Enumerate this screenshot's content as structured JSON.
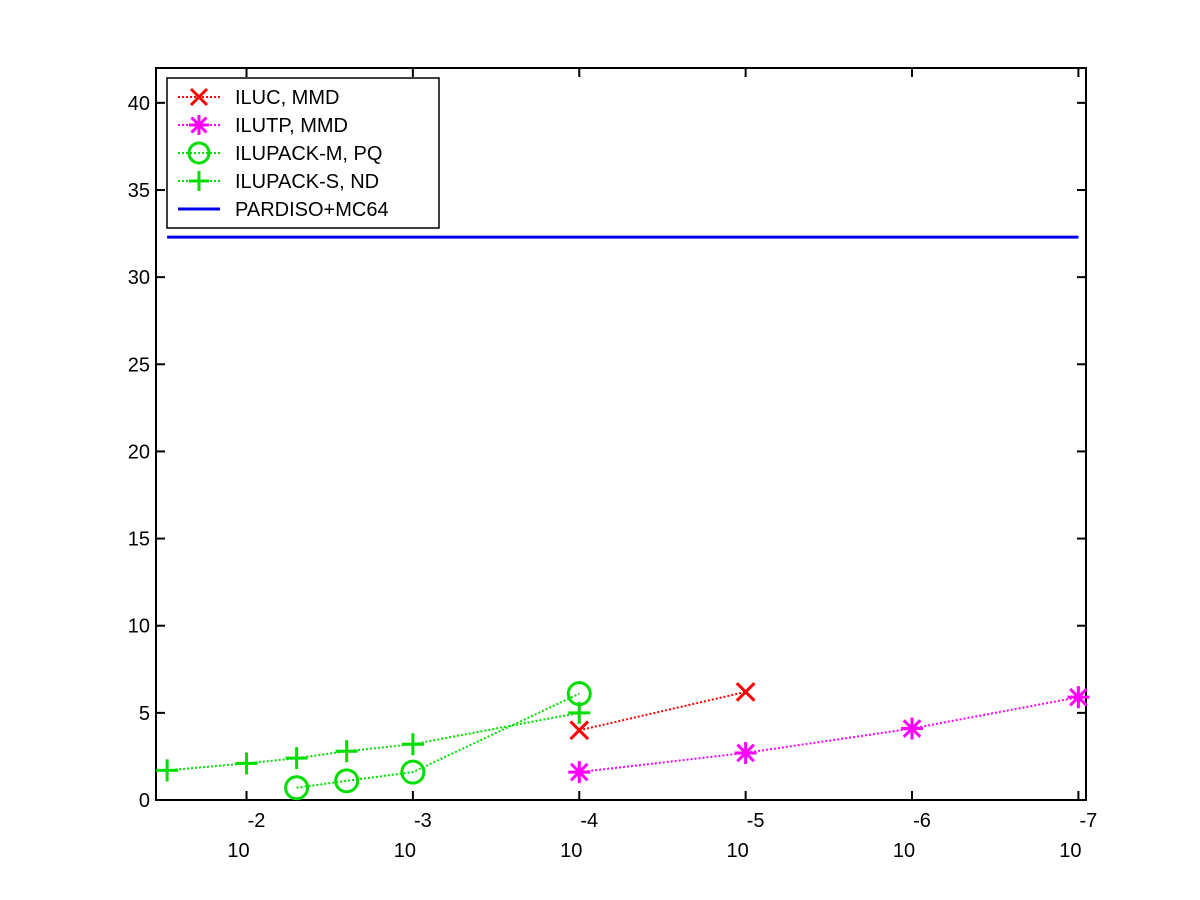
{
  "chart_data": {
    "type": "line",
    "title": "",
    "xlabel": "",
    "ylabel": "",
    "x_scale": "log",
    "x_direction": "descending",
    "xlim": [
      0.035,
      9e-08
    ],
    "ylim": [
      0,
      42
    ],
    "grid": false,
    "legend_position": "top-left",
    "x_ticks": [
      {
        "value": 0.01,
        "base": "10",
        "exp": "-2"
      },
      {
        "value": 0.001,
        "base": "10",
        "exp": "-3"
      },
      {
        "value": 0.0001,
        "base": "10",
        "exp": "-4"
      },
      {
        "value": 1e-05,
        "base": "10",
        "exp": "-5"
      },
      {
        "value": 1e-06,
        "base": "10",
        "exp": "-6"
      },
      {
        "value": 1e-07,
        "base": "10",
        "exp": "-7"
      }
    ],
    "y_ticks": [
      0,
      5,
      10,
      15,
      20,
      25,
      30,
      35,
      40
    ],
    "series": [
      {
        "name": "ILUC, MMD",
        "color": "#ff0000",
        "marker": "x",
        "line": "dotted",
        "x": [
          0.0001,
          1e-05
        ],
        "y": [
          4.0,
          6.2
        ]
      },
      {
        "name": "ILUTP, MMD",
        "color": "#ff00ff",
        "marker": "asterisk",
        "line": "dotted",
        "x": [
          0.0001,
          1e-05,
          1e-06,
          1e-07
        ],
        "y": [
          1.6,
          2.7,
          4.1,
          5.9
        ]
      },
      {
        "name": "ILUPACK-M, PQ",
        "color": "#00dd00",
        "marker": "circle",
        "line": "dotted",
        "x": [
          0.005,
          0.0025,
          0.001,
          0.0001
        ],
        "y": [
          0.7,
          1.1,
          1.6,
          6.1
        ]
      },
      {
        "name": "ILUPACK-S, ND",
        "color": "#00dd00",
        "marker": "plus",
        "line": "dotted",
        "x": [
          0.03,
          0.01,
          0.005,
          0.0025,
          0.001,
          0.0001
        ],
        "y": [
          1.7,
          2.1,
          2.4,
          2.8,
          3.2,
          5.0
        ]
      },
      {
        "name": "PARDISO+MC64",
        "color": "#0000ee",
        "marker": "none",
        "line": "solid",
        "x": [
          0.03,
          1e-07
        ],
        "y": [
          32.3,
          32.3
        ]
      }
    ]
  }
}
